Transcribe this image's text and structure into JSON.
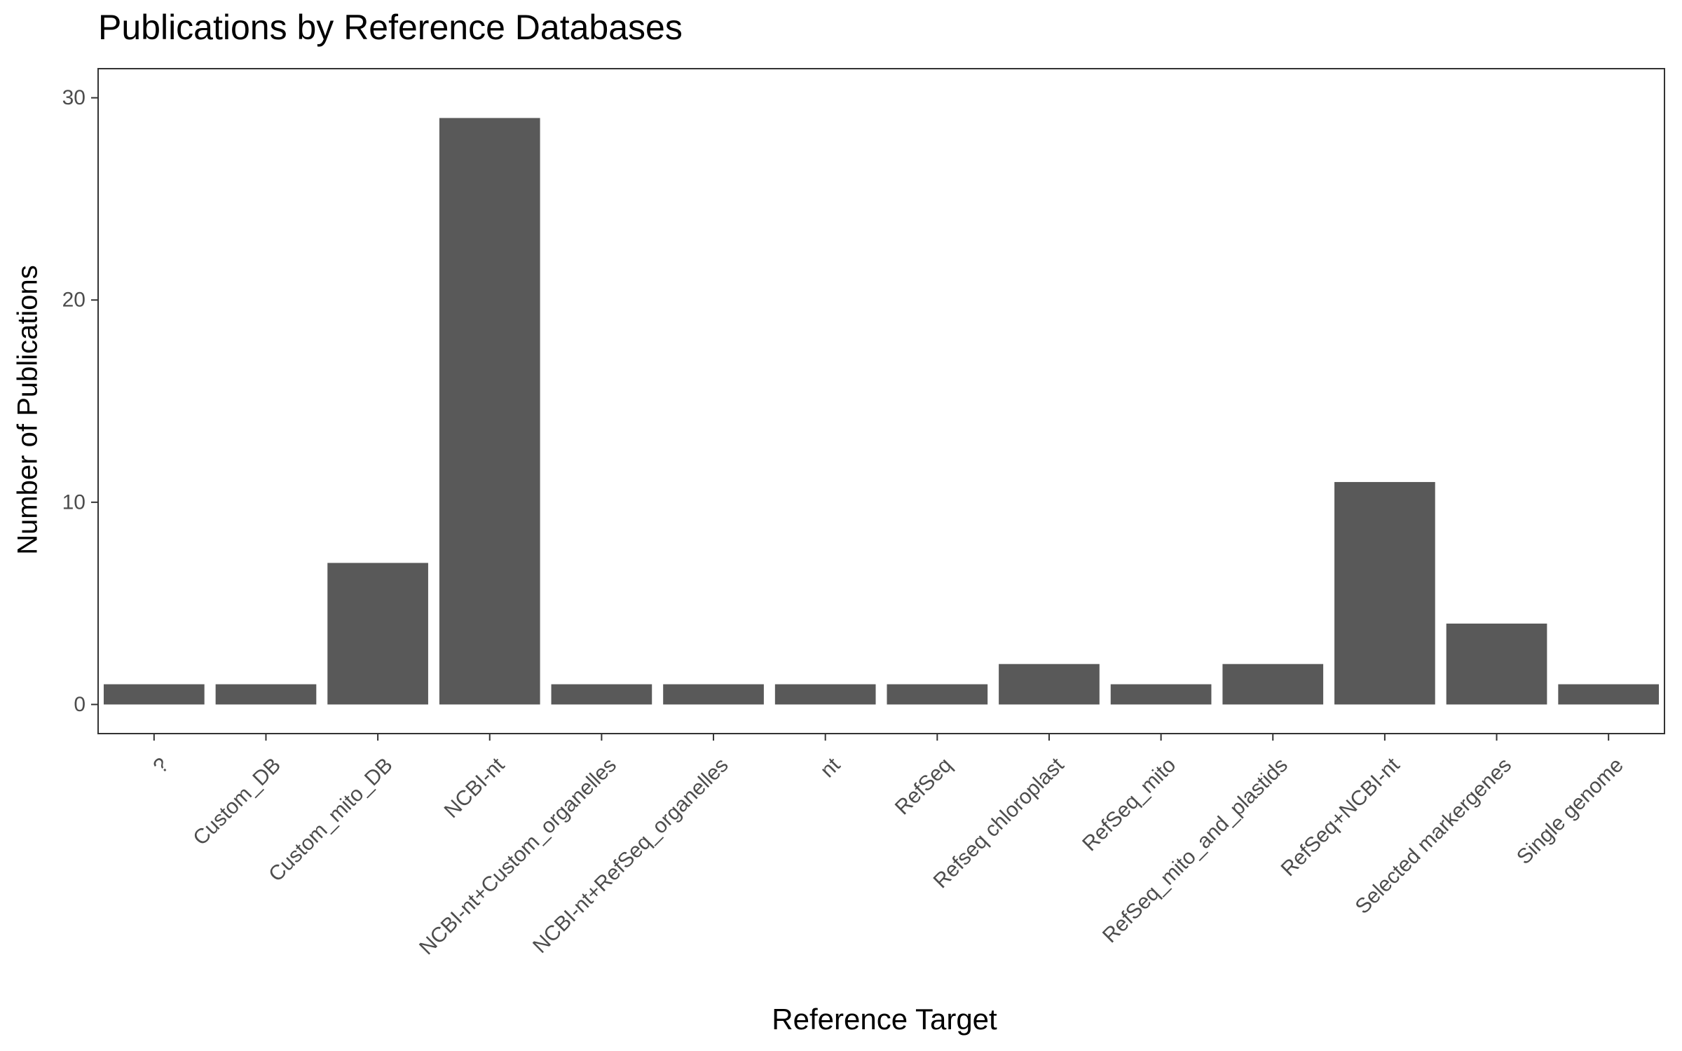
{
  "chart_data": {
    "type": "bar",
    "title": "Publications by Reference Databases",
    "xlabel": "Reference Target",
    "ylabel": "Number of Publications",
    "categories": [
      "?",
      "Custom_DB",
      "Custom_mito_DB",
      "NCBI-nt",
      "NCBI-nt+Custom_organelles",
      "NCBI-nt+RefSeq_organelles",
      "nt",
      "RefSeq",
      "Refseq chloroplast",
      "RefSeq_mito",
      "RefSeq_mito_and_plastids",
      "RefSeq+NCBI-nt",
      "Selected markergenes",
      "Single genome"
    ],
    "values": [
      1,
      1,
      7,
      29,
      1,
      1,
      1,
      1,
      2,
      1,
      2,
      11,
      4,
      1
    ],
    "ylim": [
      -1.44,
      31.44
    ],
    "yticks": [
      0,
      10,
      20,
      30
    ],
    "grid": false,
    "bar_color": "#595959",
    "axis_color": "#333333",
    "tick_label_color": "#4d4d4d"
  }
}
